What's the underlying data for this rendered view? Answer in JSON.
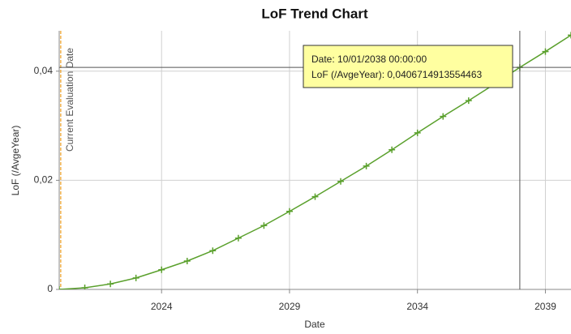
{
  "chart_data": {
    "type": "line",
    "title": "LoF Trend Chart",
    "x_label": "Date",
    "y_label": "LoF (/AvgeYear)",
    "x": [
      2020,
      2021,
      2022,
      2023,
      2024,
      2025,
      2026,
      2027,
      2028,
      2029,
      2030,
      2031,
      2032,
      2033,
      2034,
      2035,
      2036,
      2037,
      2038,
      2039,
      2040
    ],
    "series": [
      {
        "name": "LoF (/AvgeYear)",
        "color": "#5aa02c",
        "values": [
          0,
          0.0003,
          0.001,
          0.0021,
          0.0036,
          0.0052,
          0.0071,
          0.0094,
          0.0117,
          0.0143,
          0.017,
          0.0198,
          0.0226,
          0.0256,
          0.0287,
          0.0317,
          0.0346,
          0.0376,
          0.0407,
          0.0436,
          0.0466
        ]
      }
    ],
    "xlim": [
      2020,
      2040
    ],
    "xticks": [
      2024,
      2029,
      2034,
      2039
    ],
    "ylim": [
      0,
      0.0474
    ],
    "yticks": [
      {
        "value": 0,
        "label": "0"
      },
      {
        "value": 0.02,
        "label": "0,02"
      },
      {
        "value": 0.04,
        "label": "0,04"
      }
    ],
    "grid": true,
    "annotations": [
      {
        "text": "Current Evaluation Date",
        "x": 2020.06,
        "color": "#f0a020"
      }
    ],
    "tooltip": {
      "x": 2038,
      "y": 0.0407,
      "lines": [
        "Date: 10/01/2038 00:00:00",
        "LoF (/AvgeYear): 0,0406714913554463"
      ]
    }
  }
}
